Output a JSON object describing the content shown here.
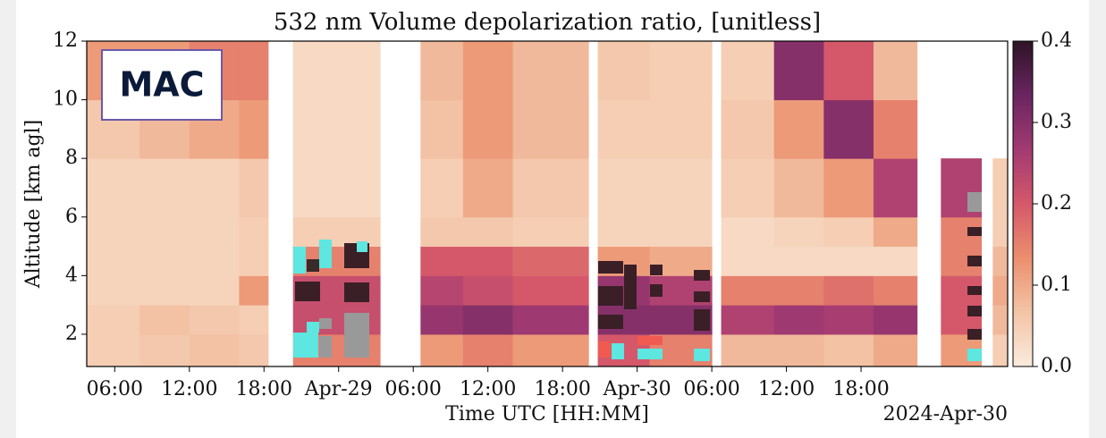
{
  "chart_data": {
    "type": "heatmap",
    "title": "532 nm Volume depolarization ratio, [unitless]",
    "x_label": "Time UTC [HH:MM]",
    "y_label": "Altitude [km agl]",
    "x_offset_label": "2024-Apr-30",
    "annotation": "MAC",
    "x": [
      "2024-04-28T03:45",
      "2024-04-28T08:00",
      "2024-04-28T12:00",
      "2024-04-28T16:00",
      "2024-04-28T18:20",
      "2024-04-28T20:20",
      "2024-04-29T03:20",
      "2024-04-29T06:35",
      "2024-04-29T10:00",
      "2024-04-29T14:00",
      "2024-04-29T20:05",
      "2024-04-29T20:50",
      "2024-04-30T01:00",
      "2024-04-30T06:00",
      "2024-04-30T06:45",
      "2024-04-30T11:00",
      "2024-04-30T15:00",
      "2024-04-30T19:00",
      "2024-04-30T22:30",
      "2024-05-01T00:25",
      "2024-05-01T03:40",
      "2024-05-01T04:35",
      "2024-05-01T05:47"
    ],
    "y": [
      0.9,
      2,
      3,
      4,
      5,
      6,
      8,
      10,
      12
    ],
    "values": [
      [
        0.05,
        0.06,
        0.07,
        0.06,
        null,
        0.15,
        null,
        0.12,
        0.15,
        0.12,
        null,
        0.2,
        0.15,
        null,
        0.08,
        0.08,
        0.07,
        0.1,
        null,
        0.12,
        null,
        0.05
      ],
      [
        0.05,
        0.07,
        0.06,
        0.05,
        null,
        0.22,
        null,
        0.28,
        0.3,
        0.27,
        null,
        0.3,
        0.3,
        null,
        0.25,
        0.27,
        0.26,
        0.28,
        null,
        0.2,
        null,
        0.08
      ],
      [
        0.04,
        0.04,
        0.04,
        0.12,
        null,
        0.22,
        null,
        0.24,
        0.22,
        0.2,
        null,
        0.28,
        0.25,
        null,
        0.15,
        0.15,
        0.17,
        0.15,
        null,
        0.2,
        null,
        0.1
      ],
      [
        0.04,
        0.04,
        0.04,
        0.05,
        null,
        0.15,
        null,
        0.2,
        0.2,
        0.18,
        null,
        0.12,
        0.1,
        null,
        0.03,
        0.03,
        0.03,
        0.03,
        null,
        0.15,
        null,
        0.08
      ],
      [
        0.04,
        0.04,
        0.04,
        0.05,
        null,
        0.05,
        null,
        0.06,
        0.06,
        0.05,
        null,
        0.04,
        0.04,
        null,
        0.03,
        0.04,
        0.05,
        0.1,
        null,
        0.15,
        null,
        0.05
      ],
      [
        0.04,
        0.04,
        0.04,
        0.06,
        null,
        0.03,
        null,
        0.05,
        0.1,
        0.06,
        null,
        0.04,
        0.04,
        null,
        0.05,
        0.08,
        0.12,
        0.25,
        null,
        0.25,
        null,
        0.05
      ],
      [
        0.06,
        0.08,
        0.1,
        0.12,
        null,
        0.03,
        null,
        0.07,
        0.12,
        0.08,
        null,
        0.05,
        0.05,
        null,
        0.06,
        0.12,
        0.3,
        0.15,
        null,
        null,
        null,
        null
      ],
      [
        0.12,
        0.12,
        0.15,
        0.15,
        null,
        0.03,
        null,
        0.08,
        0.12,
        0.08,
        null,
        0.06,
        0.05,
        null,
        0.05,
        0.3,
        0.2,
        0.08,
        null,
        null,
        null,
        null
      ]
    ],
    "xlim": [
      "2024-04-28T03:45",
      "2024-05-01T05:47"
    ],
    "xticks": [
      {
        "value": "2024-04-28T06:00",
        "label": "06:00"
      },
      {
        "value": "2024-04-28T12:00",
        "label": "12:00"
      },
      {
        "value": "2024-04-28T18:00",
        "label": "18:00"
      },
      {
        "value": "2024-04-29T00:00",
        "label": "Apr-29"
      },
      {
        "value": "2024-04-29T06:00",
        "label": "06:00"
      },
      {
        "value": "2024-04-29T12:00",
        "label": "12:00"
      },
      {
        "value": "2024-04-29T18:00",
        "label": "18:00"
      },
      {
        "value": "2024-04-30T00:00",
        "label": "Apr-30"
      },
      {
        "value": "2024-04-30T06:00",
        "label": "06:00"
      },
      {
        "value": "2024-04-30T12:00",
        "label": "12:00"
      },
      {
        "value": "2024-04-30T18:00",
        "label": "18:00"
      }
    ],
    "ylim": [
      0.9,
      12
    ],
    "yticks": [
      2,
      4,
      6,
      8,
      10,
      12
    ],
    "zlim": [
      0,
      0.4
    ],
    "zticks": [
      {
        "value": 0,
        "label": "0.0"
      },
      0.1,
      0.2,
      0.3,
      0.4
    ],
    "colorscale": [
      "#faebdd",
      "#f3c4a6",
      "#eb8f6e",
      "#d4586a",
      "#a23a72",
      "#6a2560",
      "#2e1326"
    ]
  }
}
